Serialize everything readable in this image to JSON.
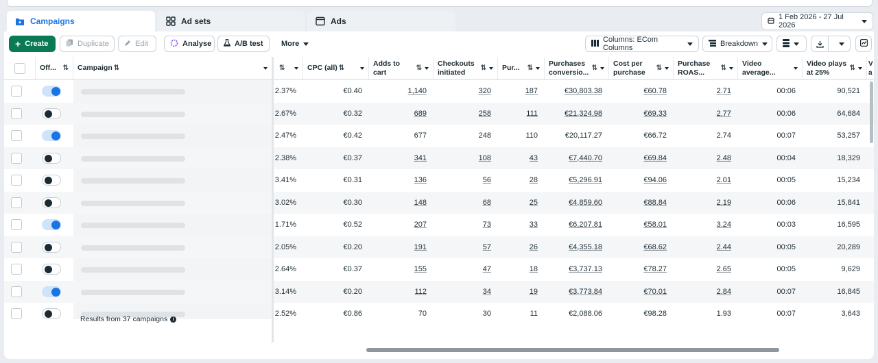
{
  "tabs": [
    {
      "label": "Campaigns",
      "icon": "campaigns-folder-icon"
    },
    {
      "label": "Ad sets",
      "icon": "adsets-grid-icon"
    },
    {
      "label": "Ads",
      "icon": "ads-window-icon"
    }
  ],
  "date_range": "1 Feb 2026 - 27 Jul 2026",
  "toolbar": {
    "create": "Create",
    "duplicate": "Duplicate",
    "edit": "Edit",
    "analyse": "Analyse",
    "ab_test": "A/B test",
    "more": "More",
    "columns": "Columns: ECom Columns",
    "breakdown": "Breakdown"
  },
  "columns": {
    "off": "Off...",
    "campaign": "Campaign",
    "cpc": "CPC (all)",
    "adds_to_cart": "Adds to cart",
    "checkouts": "Checkouts initiated",
    "purchases": "Pur...",
    "purch_conv": "Purchases conversio...",
    "cost_per_purchase": "Cost per purchase",
    "roas": "Purchase ROAS...",
    "video_avg": "Video average...",
    "video_25": "Video plays at 25%",
    "next": "V a"
  },
  "rows": [
    {
      "on": true,
      "ctr": "2.37%",
      "cpc": "€0.40",
      "atc": "1,140",
      "chk": "320",
      "pur": "187",
      "conv": "€30,803.38",
      "cpp": "€60.78",
      "roas": "2.71",
      "vavg": "00:06",
      "v25": "90,521",
      "u": true
    },
    {
      "on": false,
      "ctr": "2.67%",
      "cpc": "€0.32",
      "atc": "689",
      "chk": "258",
      "pur": "111",
      "conv": "€21,324.98",
      "cpp": "€69.33",
      "roas": "2.77",
      "vavg": "00:06",
      "v25": "64,684",
      "u": true
    },
    {
      "on": true,
      "ctr": "2.47%",
      "cpc": "€0.42",
      "atc": "677",
      "chk": "248",
      "pur": "110",
      "conv": "€20,117.27",
      "cpp": "€66.72",
      "roas": "2.74",
      "vavg": "00:07",
      "v25": "53,257",
      "u": false
    },
    {
      "on": false,
      "ctr": "2.38%",
      "cpc": "€0.37",
      "atc": "341",
      "chk": "108",
      "pur": "43",
      "conv": "€7,440.70",
      "cpp": "€69.84",
      "roas": "2.48",
      "vavg": "00:04",
      "v25": "18,329",
      "u": true
    },
    {
      "on": false,
      "ctr": "3.41%",
      "cpc": "€0.31",
      "atc": "136",
      "chk": "56",
      "pur": "28",
      "conv": "€5,296.91",
      "cpp": "€94.06",
      "roas": "2.01",
      "vavg": "00:05",
      "v25": "15,234",
      "u": true
    },
    {
      "on": false,
      "ctr": "3.02%",
      "cpc": "€0.30",
      "atc": "148",
      "chk": "68",
      "pur": "25",
      "conv": "€4,859.60",
      "cpp": "€88.84",
      "roas": "2.19",
      "vavg": "00:06",
      "v25": "15,841",
      "u": true
    },
    {
      "on": true,
      "ctr": "1.71%",
      "cpc": "€0.52",
      "atc": "207",
      "chk": "73",
      "pur": "33",
      "conv": "€6,207.81",
      "cpp": "€58.01",
      "roas": "3.24",
      "vavg": "00:03",
      "v25": "16,595",
      "u": true
    },
    {
      "on": false,
      "ctr": "2.05%",
      "cpc": "€0.20",
      "atc": "191",
      "chk": "57",
      "pur": "26",
      "conv": "€4,355.18",
      "cpp": "€68.62",
      "roas": "2.44",
      "vavg": "00:05",
      "v25": "20,289",
      "u": true
    },
    {
      "on": false,
      "ctr": "2.64%",
      "cpc": "€0.37",
      "atc": "155",
      "chk": "47",
      "pur": "18",
      "conv": "€3,737.13",
      "cpp": "€78.27",
      "roas": "2.65",
      "vavg": "00:05",
      "v25": "9,629",
      "u": true
    },
    {
      "on": true,
      "ctr": "3.14%",
      "cpc": "€0.20",
      "atc": "112",
      "chk": "34",
      "pur": "19",
      "conv": "€3,773.84",
      "cpp": "€70.01",
      "roas": "2.84",
      "vavg": "00:07",
      "v25": "16,845",
      "u": true
    },
    {
      "on": false,
      "ctr": "2.52%",
      "cpc": "€0.86",
      "atc": "70",
      "chk": "30",
      "pur": "11",
      "conv": "€2,088.06",
      "cpp": "€98.28",
      "roas": "1.93",
      "vavg": "00:07",
      "v25": "3,643",
      "u": false
    }
  ],
  "footer": "Results from 37 campaigns"
}
